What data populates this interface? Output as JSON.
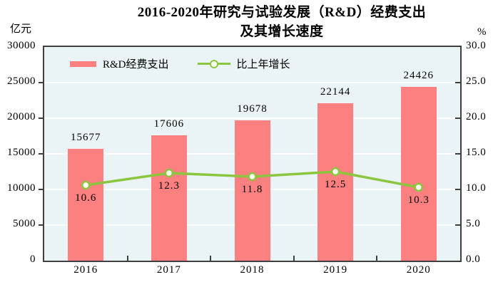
{
  "title": {
    "line1": "2016-2020年研究与试验发展（R&D）经费支出",
    "line2": "及其增长速度"
  },
  "axes": {
    "left_unit": "亿元",
    "right_unit": "%",
    "left_ticks": [
      "30000",
      "25000",
      "20000",
      "15000",
      "10000",
      "5000",
      "0"
    ],
    "right_ticks": [
      "30.0",
      "25.0",
      "20.0",
      "15.0",
      "10.0",
      "5.0",
      "0.0"
    ]
  },
  "legend": {
    "items": [
      {
        "label": "R&D经费支出",
        "type": "bar"
      },
      {
        "label": "比上年增长",
        "type": "line"
      }
    ]
  },
  "chart_data": {
    "type": "bar+line combo",
    "title": "2016-2020年研究与试验发展（R&D）经费支出及其增长速度",
    "categories": [
      "2016",
      "2017",
      "2018",
      "2019",
      "2020"
    ],
    "series": [
      {
        "name": "R&D经费支出",
        "type": "bar",
        "axis": "left",
        "unit": "亿元",
        "values": [
          15677,
          17606,
          19678,
          22144,
          24426
        ],
        "color": "#fc8080"
      },
      {
        "name": "比上年增长",
        "type": "line",
        "axis": "right",
        "unit": "%",
        "values": [
          10.6,
          12.3,
          11.8,
          12.5,
          10.3
        ],
        "color": "#8cc63f",
        "marker": "open-circle"
      }
    ],
    "left_axis": {
      "label": "亿元",
      "range": [
        0,
        30000
      ],
      "tick_step": 5000
    },
    "right_axis": {
      "label": "%",
      "range": [
        0,
        30
      ],
      "tick_step": 5
    },
    "grid": true,
    "legend_position": "top-inside",
    "data_labels": true
  },
  "colors": {
    "bar": "#fc8080",
    "line": "#8cc63f",
    "marker_fill": "#fdfef4",
    "plot_background": "#eaf4f7",
    "plot_border": "#3f3f3f",
    "gridline": "#ffffff",
    "text": "#000000"
  }
}
